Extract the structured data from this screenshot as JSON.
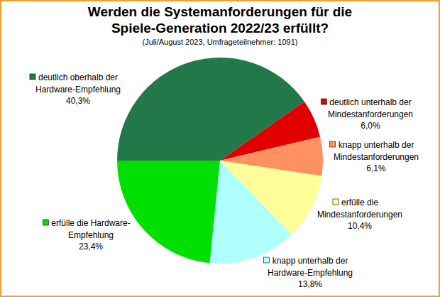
{
  "chart_data": {
    "type": "pie",
    "title": [
      "Werden die Systemanforderungen für die",
      "Spiele-Generation 2022/23 erfüllt?"
    ],
    "subtitle": "(Juli/August 2023, Umfrageteilnehmer: 1091)",
    "categories": [
      "deutlich oberhalb der\nHardware-Empfehlung",
      "deutlich unterhalb der\nMindestanforderungen",
      "knapp unterhalb der\nMindestanforderungen",
      "erfülle die\nMindestanforderungen",
      "knapp unterhalb der\nHardware-Empfehlung",
      "erfülle die Hardware-\nEmpfehlung"
    ],
    "values": [
      40.3,
      6.0,
      6.1,
      10.4,
      13.8,
      23.4
    ],
    "value_labels": [
      "40,3%",
      "6,0%",
      "6,1%",
      "10,4%",
      "13,8%",
      "23,4%"
    ],
    "colors": [
      "#23784a",
      "#e00000",
      "#ff9060",
      "#ffff99",
      "#b0ffff",
      "#00e000"
    ],
    "data_labels": true
  }
}
